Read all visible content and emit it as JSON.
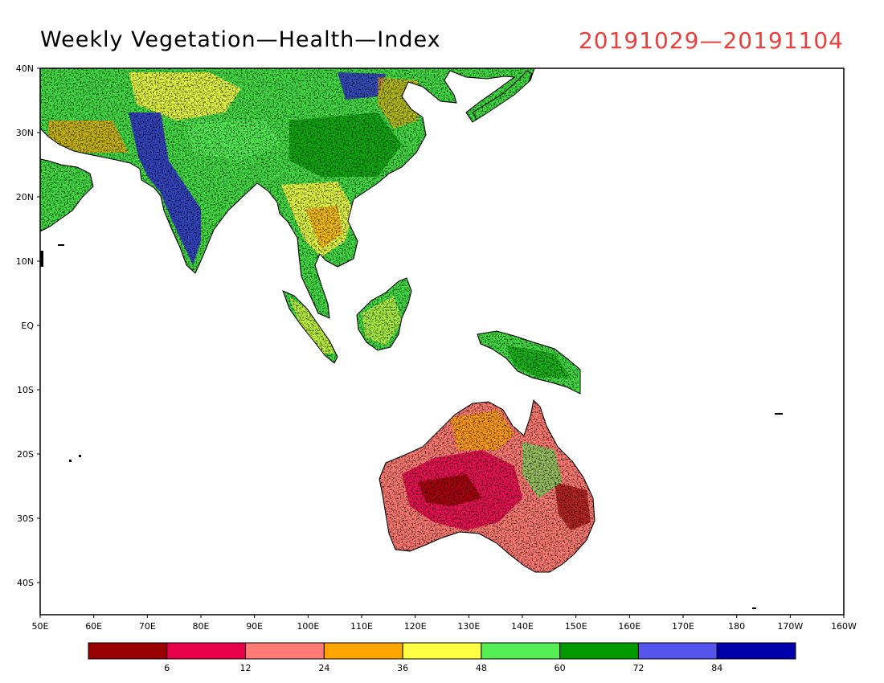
{
  "title": "Weekly Vegetation—Health—Index",
  "date_range": "20191029—20191104",
  "date_color": "#e8403c",
  "map": {
    "lon_range": [
      50,
      200
    ],
    "lat_range": [
      -45,
      40
    ],
    "lat_ticks": [
      {
        "lat": 40,
        "label": "40N"
      },
      {
        "lat": 30,
        "label": "30N"
      },
      {
        "lat": 20,
        "label": "20N"
      },
      {
        "lat": 10,
        "label": "10N"
      },
      {
        "lat": 0,
        "label": "EQ"
      },
      {
        "lat": -10,
        "label": "10S"
      },
      {
        "lat": -20,
        "label": "20S"
      },
      {
        "lat": -30,
        "label": "30S"
      },
      {
        "lat": -40,
        "label": "40S"
      }
    ],
    "lon_ticks": [
      {
        "lon": 50,
        "label": "50E"
      },
      {
        "lon": 60,
        "label": "60E"
      },
      {
        "lon": 70,
        "label": "70E"
      },
      {
        "lon": 80,
        "label": "80E"
      },
      {
        "lon": 90,
        "label": "90E"
      },
      {
        "lon": 100,
        "label": "100E"
      },
      {
        "lon": 110,
        "label": "110E"
      },
      {
        "lon": 120,
        "label": "120E"
      },
      {
        "lon": 130,
        "label": "130E"
      },
      {
        "lon": 140,
        "label": "140E"
      },
      {
        "lon": 150,
        "label": "150E"
      },
      {
        "lon": 160,
        "label": "160E"
      },
      {
        "lon": 170,
        "label": "170E"
      },
      {
        "lon": 180,
        "label": "180"
      },
      {
        "lon": 190,
        "label": "170W"
      },
      {
        "lon": 200,
        "label": "160W"
      }
    ],
    "grid": true
  },
  "legend": {
    "colors": [
      "#990000",
      "#e8004b",
      "#ff7b73",
      "#ffa500",
      "#ffff44",
      "#55ee55",
      "#009900",
      "#5555ee",
      "#0000aa"
    ],
    "labels": [
      "6",
      "12",
      "24",
      "36",
      "48",
      "60",
      "72",
      "84"
    ]
  }
}
